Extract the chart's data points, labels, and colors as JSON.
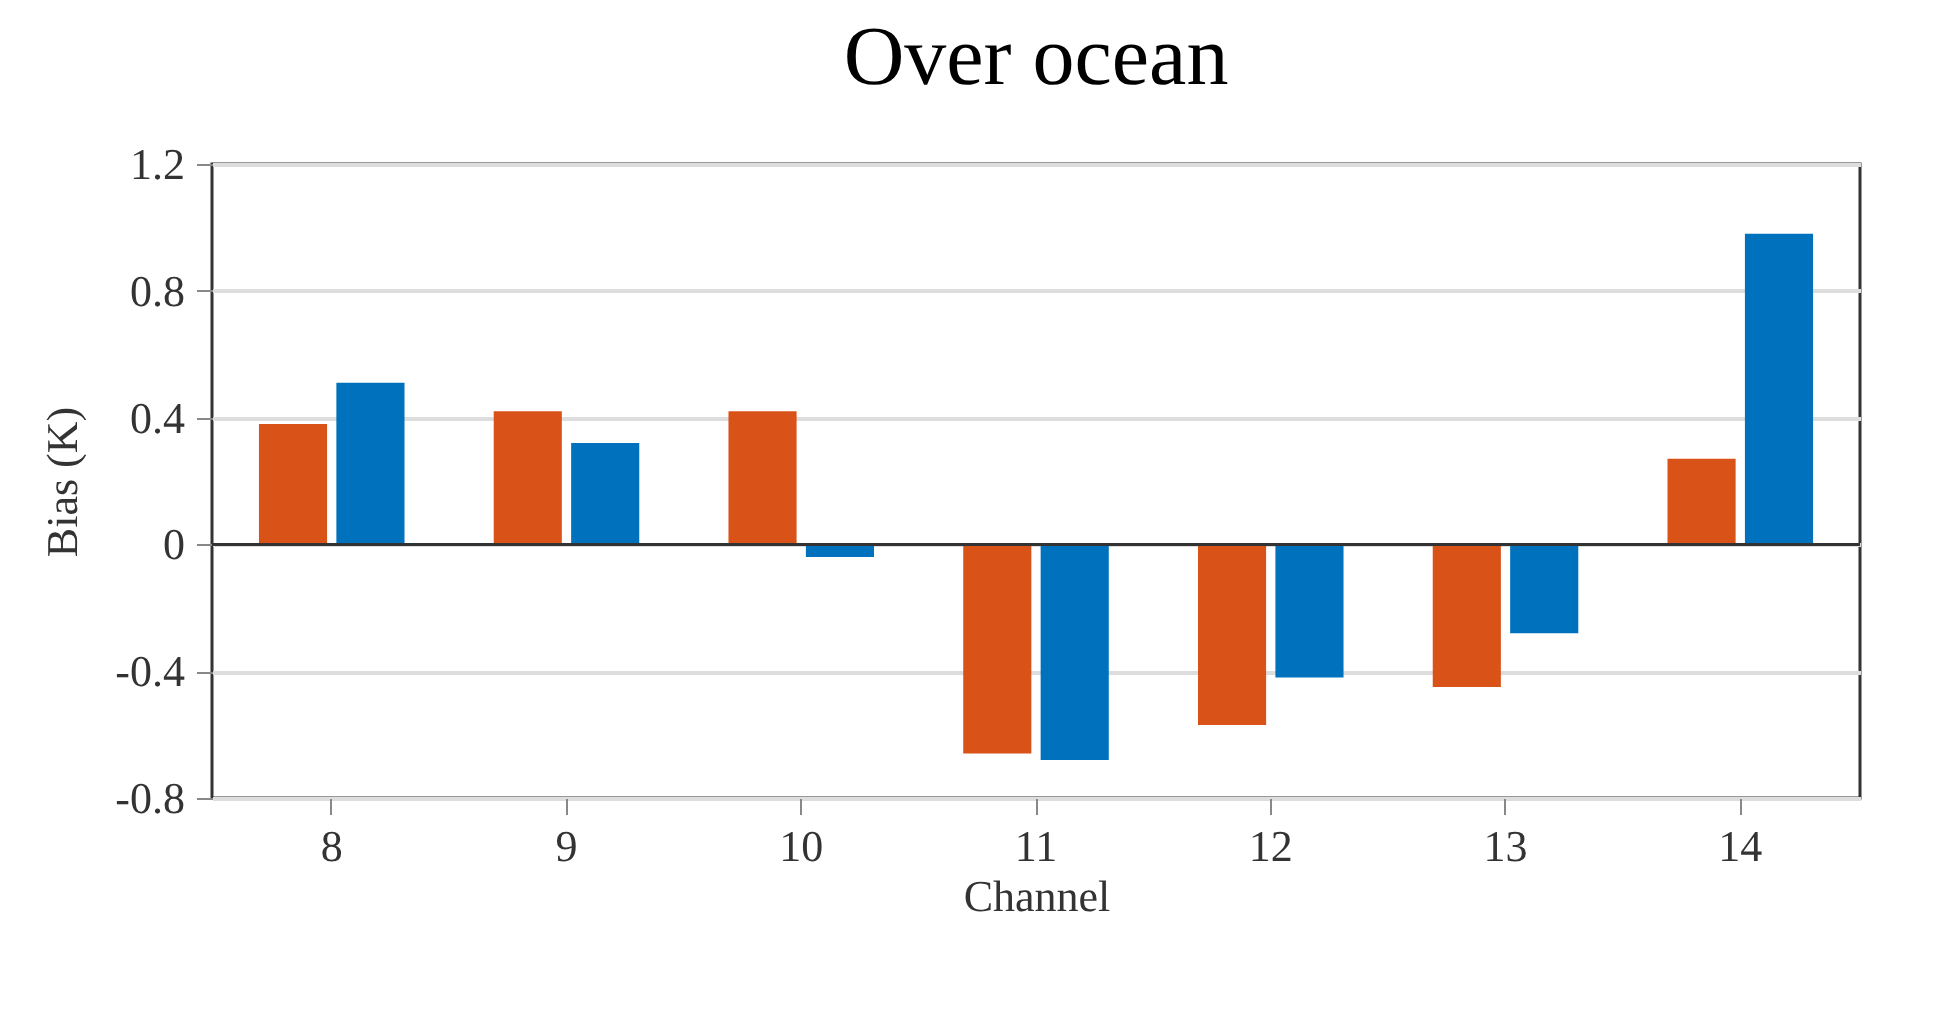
{
  "chart_data": {
    "type": "bar",
    "title": "Over ocean",
    "xlabel": "Channel",
    "ylabel": "Bias (K)",
    "categories": [
      "8",
      "9",
      "10",
      "11",
      "12",
      "13",
      "14"
    ],
    "series": [
      {
        "color": "#d95319",
        "values": [
          0.38,
          0.42,
          0.42,
          -0.66,
          -0.57,
          -0.45,
          0.27
        ]
      },
      {
        "color": "#0072bd",
        "values": [
          0.51,
          0.32,
          -0.04,
          -0.68,
          -0.42,
          -0.28,
          0.98
        ]
      }
    ],
    "ylim": [
      -0.8,
      1.2
    ],
    "yticks": [
      -0.8,
      -0.4,
      0,
      0.4,
      0.8,
      1.2
    ],
    "grid": "y",
    "legend": false,
    "ref_lines": [
      {
        "axis": "y",
        "value": 0,
        "color": "#333333"
      }
    ]
  }
}
